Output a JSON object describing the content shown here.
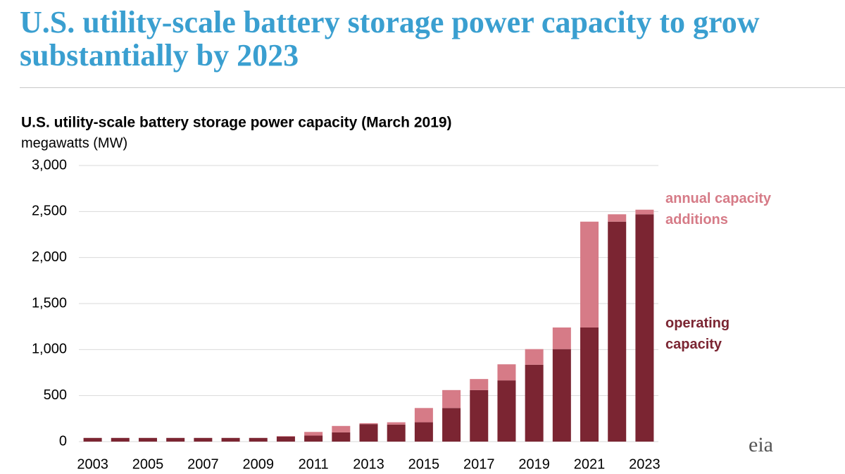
{
  "page_title": "U.S. utility-scale battery storage power capacity to grow substantially by 2023",
  "logo": "eia",
  "chart_data": {
    "type": "stacked_bar",
    "title": "U.S. utility-scale battery storage power capacity (March 2019)",
    "y_label": "megawatts (MW)",
    "categories": [
      "2003",
      null,
      "2005",
      null,
      "2007",
      null,
      "2009",
      null,
      "2011",
      null,
      "2013",
      null,
      "2015",
      null,
      "2017",
      null,
      "2019",
      null,
      "2021",
      null,
      "2023"
    ],
    "series": [
      {
        "name": "operating capacity",
        "color": "#7b2532",
        "values": [
          40,
          40,
          40,
          40,
          40,
          40,
          40,
          55,
          65,
          100,
          190,
          185,
          210,
          365,
          560,
          665,
          835,
          1005,
          1240,
          2390,
          2470
        ]
      },
      {
        "name": "annual capacity additions",
        "color": "#d67b87",
        "values": [
          0,
          0,
          0,
          0,
          0,
          0,
          0,
          5,
          40,
          70,
          10,
          25,
          155,
          195,
          120,
          175,
          170,
          235,
          1150,
          80,
          50
        ]
      }
    ],
    "ylim": [
      0,
      3000
    ],
    "yticks": [
      0,
      500,
      {
        "value": 1000,
        "label": "1,000"
      },
      {
        "value": 1500,
        "label": "1,500"
      },
      {
        "value": 2000,
        "label": "2,000"
      },
      {
        "value": 2500,
        "label": "2,500"
      },
      {
        "value": 3000,
        "label": "3,000"
      }
    ],
    "grid": true
  }
}
